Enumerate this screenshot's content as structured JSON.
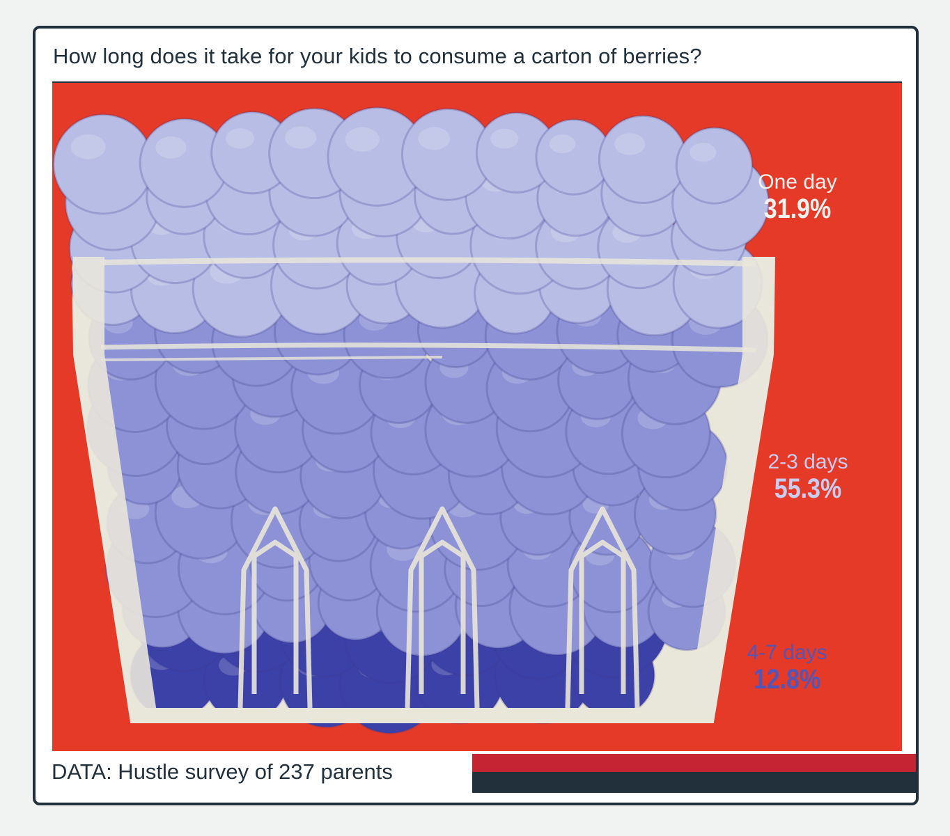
{
  "title": "How long does it take for your kids to consume a carton of berries?",
  "footer": "DATA: Hustle survey of 237 parents",
  "colors": {
    "background_red": "#e43a27",
    "carton": "#e9e6da",
    "berry_light": "#b8bde6",
    "berry_mid": "#8d92d6",
    "berry_dark": "#3c41a8",
    "text_dark": "#22303c",
    "stripe_red": "#c52432",
    "stripe_navy": "#22303c"
  },
  "chart_data": {
    "type": "pie",
    "title": "How long does it take for your kids to consume a carton of berries?",
    "categories": [
      "One day",
      "2-3 days",
      "4-7 days"
    ],
    "values": [
      31.9,
      55.3,
      12.8
    ],
    "value_labels": [
      "31.9%",
      "55.3%",
      "12.8%"
    ],
    "label_colors": [
      "#f2f1ee",
      "#c9cdf0",
      "#5156b8"
    ],
    "series_colors": [
      "#b8bde6",
      "#8d92d6",
      "#3c41a8"
    ],
    "unit": "%",
    "note": "DATA: Hustle survey of 237 parents"
  }
}
